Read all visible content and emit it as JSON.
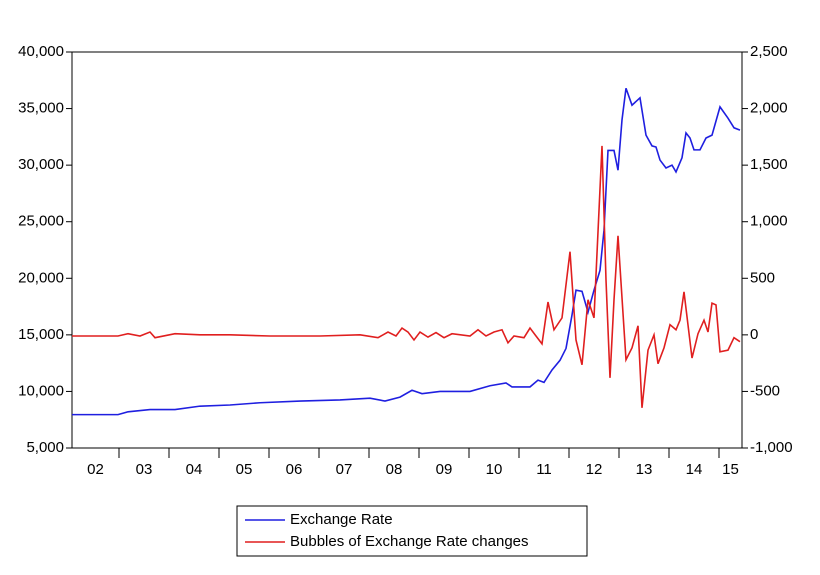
{
  "chart_data": {
    "type": "line",
    "xlim": [
      2002.06,
      2015.46
    ],
    "xticks": [
      {
        "value": 2002.5,
        "label": "02"
      },
      {
        "value": 2003.5,
        "label": "03"
      },
      {
        "value": 2004.5,
        "label": "04"
      },
      {
        "value": 2005.5,
        "label": "05"
      },
      {
        "value": 2006.5,
        "label": "06"
      },
      {
        "value": 2007.5,
        "label": "07"
      },
      {
        "value": 2008.5,
        "label": "08"
      },
      {
        "value": 2009.5,
        "label": "09"
      },
      {
        "value": 2010.5,
        "label": "10"
      },
      {
        "value": 2011.5,
        "label": "11"
      },
      {
        "value": 2012.5,
        "label": "12"
      },
      {
        "value": 2013.5,
        "label": "13"
      },
      {
        "value": 2014.5,
        "label": "14"
      },
      {
        "value": 2015.5,
        "label": "15"
      }
    ],
    "ylim": [
      5000,
      40000
    ],
    "yticks": [
      {
        "value": 5000,
        "label": "5,000"
      },
      {
        "value": 10000,
        "label": "10,000"
      },
      {
        "value": 15000,
        "label": "15,000"
      },
      {
        "value": 20000,
        "label": "20,000"
      },
      {
        "value": 25000,
        "label": "25,000"
      },
      {
        "value": 30000,
        "label": "30,000"
      },
      {
        "value": 35000,
        "label": "35,000"
      },
      {
        "value": 40000,
        "label": "40,000"
      }
    ],
    "y2lim": [
      -1000,
      2500
    ],
    "y2ticks": [
      {
        "value": -1000,
        "label": "-1,000"
      },
      -500,
      0,
      500,
      {
        "value": 1000,
        "label": "1,000"
      },
      {
        "value": 1500,
        "label": "1,500"
      },
      {
        "value": 2000,
        "label": "2,000"
      },
      {
        "value": 2500,
        "label": "2,500"
      }
    ],
    "series": [
      {
        "name": "Exchange Rate",
        "color": "#1f1fe0",
        "x": [
          2002.06,
          2002.98,
          2003.18,
          2003.62,
          2004.12,
          2004.62,
          2005.22,
          2005.82,
          2006.62,
          2007.42,
          2008.02,
          2008.32,
          2008.62,
          2008.86,
          2009.06,
          2009.42,
          2010.02,
          2010.42,
          2010.74,
          2010.86,
          2011.22,
          2011.38,
          2011.5,
          2011.66,
          2011.82,
          2011.94,
          2012.06,
          2012.14,
          2012.26,
          2012.38,
          2012.5,
          2012.62,
          2012.7,
          2012.78,
          2012.9,
          2012.98,
          2013.06,
          2013.14,
          2013.26,
          2013.42,
          2013.54,
          2013.66,
          2013.74,
          2013.82,
          2013.94,
          2014.06,
          2014.14,
          2014.26,
          2014.34,
          2014.42,
          2014.5,
          2014.62,
          2014.74,
          2014.86,
          2015.02,
          2015.18,
          2015.3,
          2015.42
        ],
        "values": [
          7950,
          7950,
          8200,
          8400,
          8400,
          8700,
          8800,
          9000,
          9150,
          9250,
          9400,
          9150,
          9500,
          10100,
          9800,
          10000,
          10000,
          10500,
          10750,
          10400,
          10400,
          11000,
          10800,
          11900,
          12750,
          13800,
          16750,
          18950,
          18850,
          17000,
          18950,
          20700,
          24250,
          31300,
          31300,
          29550,
          34000,
          36800,
          35300,
          35950,
          32650,
          31700,
          31600,
          30450,
          29750,
          30000,
          29400,
          30650,
          32850,
          32400,
          31350,
          31350,
          32400,
          32650,
          35150,
          34150,
          33300,
          33100
        ]
      },
      {
        "name": "Bubbles of Exchange Rate changes",
        "color": "#e01f1f",
        "axis": "y2",
        "x": [
          2002.06,
          2002.98,
          2003.18,
          2003.42,
          2003.62,
          2003.72,
          2004.12,
          2004.62,
          2005.22,
          2006.02,
          2007.02,
          2007.82,
          2008.18,
          2008.38,
          2008.54,
          2008.66,
          2008.78,
          2008.9,
          2009.02,
          2009.18,
          2009.34,
          2009.5,
          2009.66,
          2010.02,
          2010.18,
          2010.34,
          2010.5,
          2010.66,
          2010.78,
          2010.9,
          2011.1,
          2011.22,
          2011.34,
          2011.46,
          2011.58,
          2011.7,
          2011.86,
          2012.02,
          2012.14,
          2012.26,
          2012.38,
          2012.5,
          2012.66,
          2012.74,
          2012.82,
          2012.9,
          2012.98,
          2013.14,
          2013.26,
          2013.38,
          2013.46,
          2013.58,
          2013.7,
          2013.78,
          2013.9,
          2014.02,
          2014.14,
          2014.22,
          2014.3,
          2014.46,
          2014.58,
          2014.7,
          2014.78,
          2014.86,
          2014.94,
          2015.02,
          2015.18,
          2015.3,
          2015.42
        ],
        "values": [
          -10,
          -10,
          10,
          -10,
          25,
          -25,
          10,
          0,
          0,
          -10,
          -10,
          0,
          -25,
          25,
          -10,
          60,
          25,
          -45,
          25,
          -20,
          20,
          -25,
          10,
          -10,
          45,
          -10,
          25,
          45,
          -70,
          -10,
          -25,
          60,
          -10,
          -80,
          290,
          45,
          150,
          735,
          -45,
          -265,
          310,
          150,
          1670,
          485,
          -380,
          310,
          875,
          -220,
          -115,
          80,
          -645,
          -135,
          0,
          -255,
          -115,
          90,
          45,
          130,
          380,
          -205,
          10,
          130,
          25,
          280,
          265,
          -150,
          -135,
          -25,
          -60
        ]
      }
    ]
  }
}
